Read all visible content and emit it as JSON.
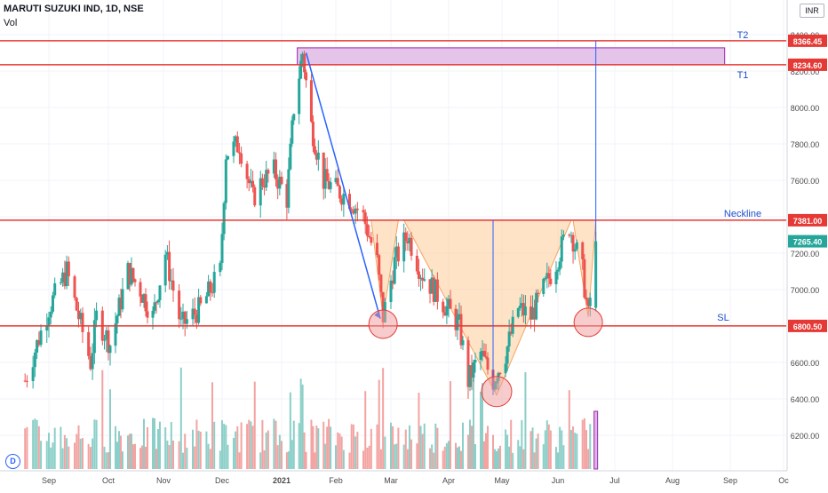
{
  "header": {
    "title": "MARUTI SUZUKI IND, 1D, NSE",
    "vol_label": "Vol",
    "currency": "INR",
    "logo_letter": "D"
  },
  "colors": {
    "up": "#26a69a",
    "down": "#ef5350",
    "level_line": "#e53935",
    "projection": "#2962ff",
    "pattern_fill": "#ffcc99",
    "target_box": "#e1bee7",
    "annotation_text": "#1e4fd1"
  },
  "chart_data": {
    "type": "candlestick",
    "symbol": "MARUTI SUZUKI IND",
    "interval": "1D",
    "exchange": "NSE",
    "x_tick_labels": [
      "Sep",
      "Oct",
      "Nov",
      "Dec",
      "2021",
      "Feb",
      "Mar",
      "Apr",
      "May",
      "Jun",
      "Jul",
      "Aug",
      "Sep",
      "Oc"
    ],
    "y_tick_labels": [
      6200,
      6400,
      6600,
      6800,
      7000,
      7200,
      7400,
      7600,
      7800,
      8000,
      8200,
      8400
    ],
    "y_range": [
      5900,
      8600
    ],
    "last_price": 7265.4,
    "price_path": [
      [
        "2020-08-20",
        6500
      ],
      [
        "2020-09-01",
        6900
      ],
      [
        "2020-09-10",
        7100
      ],
      [
        "2020-09-22",
        6600
      ],
      [
        "2020-09-25",
        6850
      ],
      [
        "2020-10-02",
        6700
      ],
      [
        "2020-10-12",
        7100
      ],
      [
        "2020-10-19",
        7000
      ],
      [
        "2020-10-26",
        6850
      ],
      [
        "2020-11-02",
        7200
      ],
      [
        "2020-11-10",
        6800
      ],
      [
        "2020-11-20",
        6900
      ],
      [
        "2020-11-30",
        7100
      ],
      [
        "2020-12-03",
        7750
      ],
      [
        "2020-12-10",
        7800
      ],
      [
        "2020-12-17",
        7500
      ],
      [
        "2020-12-22",
        7600
      ],
      [
        "2020-12-28",
        7650
      ],
      [
        "2021-01-04",
        7500
      ],
      [
        "2021-01-08",
        8000
      ],
      [
        "2021-01-13",
        8300
      ],
      [
        "2021-01-18",
        7900
      ],
      [
        "2021-01-25",
        7600
      ],
      [
        "2021-02-01",
        7550
      ],
      [
        "2021-02-08",
        7500
      ],
      [
        "2021-02-15",
        7400
      ],
      [
        "2021-02-22",
        7150
      ],
      [
        "2021-02-25",
        6850
      ],
      [
        "2021-03-03",
        7150
      ],
      [
        "2021-03-10",
        7300
      ],
      [
        "2021-03-17",
        7100
      ],
      [
        "2021-03-24",
        7000
      ],
      [
        "2021-03-31",
        6900
      ],
      [
        "2021-04-07",
        6800
      ],
      [
        "2021-04-12",
        6500
      ],
      [
        "2021-04-19",
        6650
      ],
      [
        "2021-04-26",
        6500
      ],
      [
        "2021-05-03",
        6650
      ],
      [
        "2021-05-10",
        6900
      ],
      [
        "2021-05-17",
        6850
      ],
      [
        "2021-05-24",
        7000
      ],
      [
        "2021-05-31",
        7150
      ],
      [
        "2021-06-07",
        7350
      ],
      [
        "2021-06-14",
        7100
      ],
      [
        "2021-06-17",
        6850
      ],
      [
        "2021-06-21",
        7265.4
      ]
    ],
    "levels": [
      {
        "label": "T2",
        "price": 8366.45,
        "price_label": "8366.45"
      },
      {
        "label": "T1",
        "price": 8234.6,
        "price_label": "8234.60"
      },
      {
        "label": "Neckline",
        "price": 7381.0,
        "price_label": "7381.00"
      },
      {
        "label": "SL",
        "price": 6800.5,
        "price_label": "6800.50"
      }
    ],
    "volume_highlight_bar": "2021-06-21"
  }
}
